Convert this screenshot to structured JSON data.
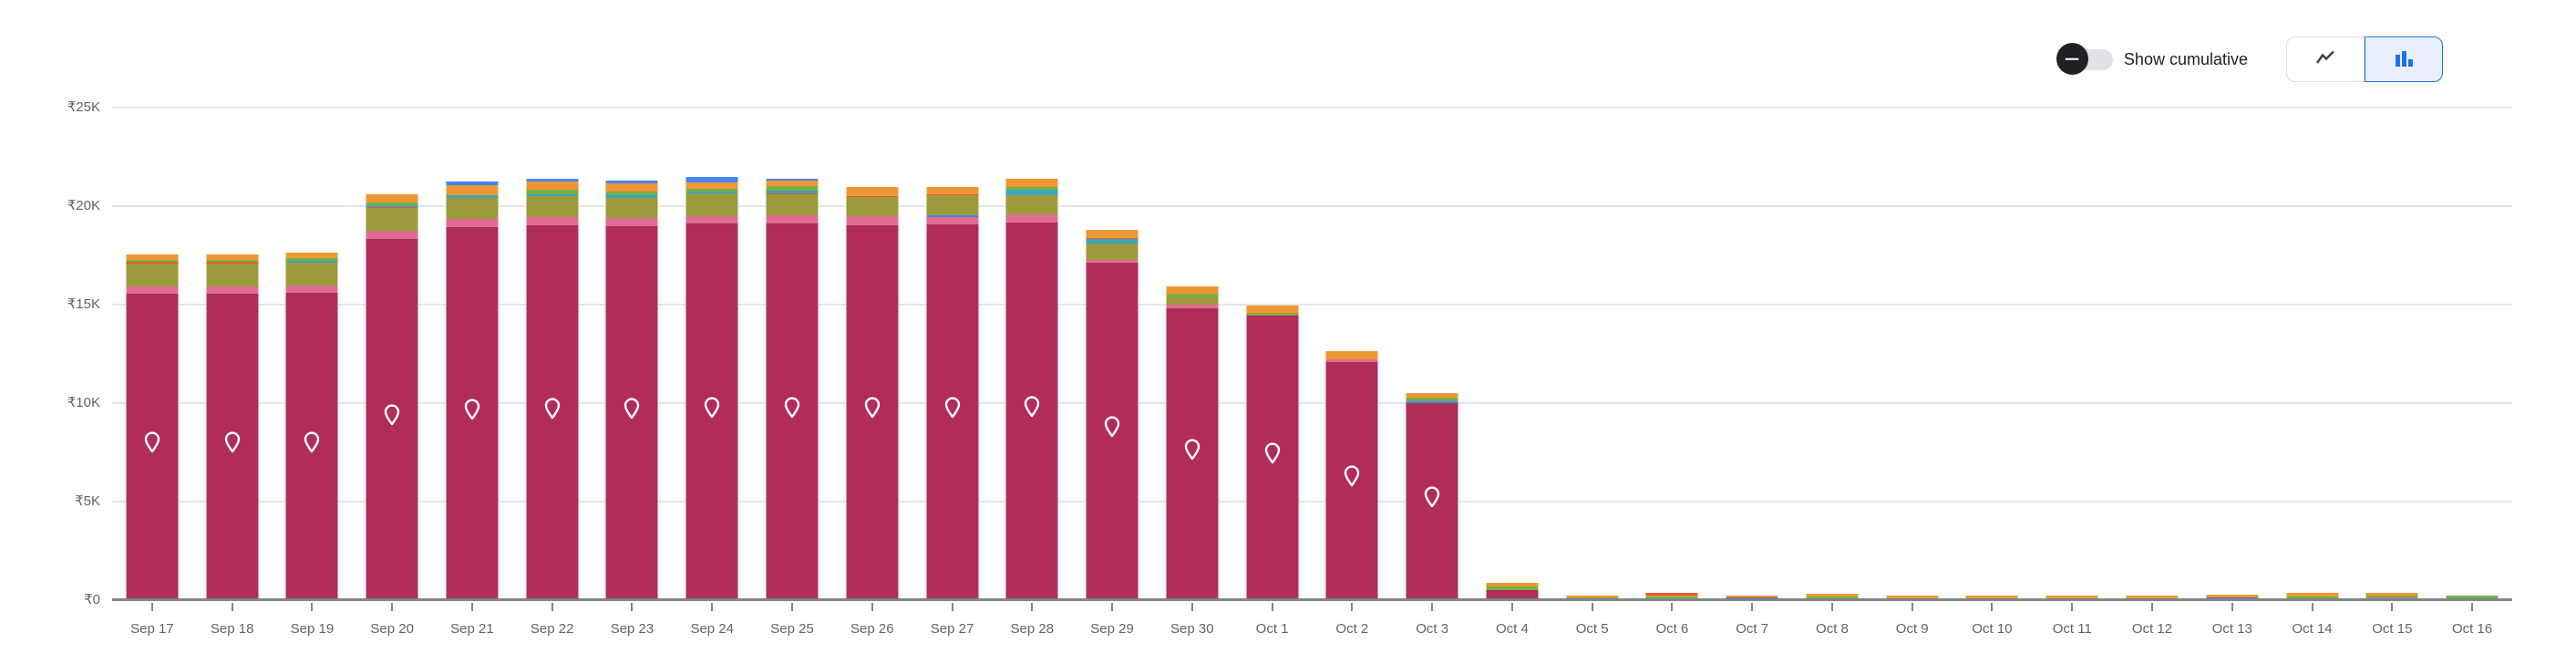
{
  "controls": {
    "toggle_label": "Show cumulative",
    "toggle_state": "off",
    "chart_type_buttons": [
      {
        "name": "line-chart",
        "selected": false
      },
      {
        "name": "bar-chart",
        "selected": true
      }
    ]
  },
  "colors": {
    "magenta": "#b02c59",
    "pink": "#e06c94",
    "olive": "#9d9a3b",
    "deep_orange": "#e2593a",
    "teal": "#3aa6b9",
    "green": "#76b043",
    "orange": "#ee9734",
    "blue": "#4285f4",
    "indigo": "#5b6abf",
    "accent_blue": "#1a73e8",
    "selected_button_bg": "#e8f0fe",
    "axis_label": "#5f6368",
    "gridline": "#e4e4e9",
    "baseline": "#7f868c"
  },
  "chart_data": {
    "type": "bar",
    "stacked": true,
    "currency": "₹",
    "y_ticks": [
      "₹25K",
      "₹20K",
      "₹15K",
      "₹10K",
      "₹5K",
      "₹0"
    ],
    "ylim": [
      0,
      25000
    ],
    "grid": true,
    "categories": [
      "Sep 17",
      "Sep 18",
      "Sep 19",
      "Sep 20",
      "Sep 21",
      "Sep 22",
      "Sep 23",
      "Sep 24",
      "Sep 25",
      "Sep 26",
      "Sep 27",
      "Sep 28",
      "Sep 29",
      "Sep 30",
      "Oct 1",
      "Oct 2",
      "Oct 3",
      "Oct 4",
      "Oct 5",
      "Oct 6",
      "Oct 7",
      "Oct 8",
      "Oct 9",
      "Oct 10",
      "Oct 11",
      "Oct 12",
      "Oct 13",
      "Oct 14",
      "Oct 15",
      "Oct 16"
    ],
    "bars": [
      {
        "date": "Sep 17",
        "pin": true,
        "segments": [
          [
            "magenta",
            15570
          ],
          [
            "pink",
            370
          ],
          [
            "olive",
            1130
          ],
          [
            "deep_orange",
            90
          ],
          [
            "green",
            90
          ],
          [
            "orange",
            290
          ]
        ]
      },
      {
        "date": "Sep 18",
        "pin": true,
        "segments": [
          [
            "magenta",
            15570
          ],
          [
            "pink",
            370
          ],
          [
            "olive",
            1130
          ],
          [
            "deep_orange",
            90
          ],
          [
            "green",
            90
          ],
          [
            "orange",
            290
          ]
        ]
      },
      {
        "date": "Sep 19",
        "pin": true,
        "segments": [
          [
            "magenta",
            15600
          ],
          [
            "pink",
            380
          ],
          [
            "olive",
            1130
          ],
          [
            "teal",
            100
          ],
          [
            "green",
            140
          ],
          [
            "orange",
            290
          ]
        ]
      },
      {
        "date": "Sep 20",
        "pin": true,
        "segments": [
          [
            "magenta",
            18350
          ],
          [
            "pink",
            410
          ],
          [
            "olive",
            1130
          ],
          [
            "deep_orange",
            70
          ],
          [
            "teal",
            110
          ],
          [
            "green",
            120
          ],
          [
            "orange",
            430
          ]
        ]
      },
      {
        "date": "Sep 21",
        "pin": true,
        "segments": [
          [
            "magenta",
            18930
          ],
          [
            "pink",
            420
          ],
          [
            "olive",
            1080
          ],
          [
            "teal",
            110
          ],
          [
            "orange",
            510
          ],
          [
            "blue",
            190
          ]
        ]
      },
      {
        "date": "Sep 22",
        "pin": true,
        "segments": [
          [
            "magenta",
            19010
          ],
          [
            "pink",
            420
          ],
          [
            "olive",
            1080
          ],
          [
            "teal",
            90
          ],
          [
            "green",
            230
          ],
          [
            "orange",
            420
          ],
          [
            "blue",
            150
          ]
        ]
      },
      {
        "date": "Sep 23",
        "pin": true,
        "segments": [
          [
            "magenta",
            18970
          ],
          [
            "pink",
            420
          ],
          [
            "olive",
            1050
          ],
          [
            "teal",
            100
          ],
          [
            "green",
            200
          ],
          [
            "orange",
            420
          ],
          [
            "blue",
            120
          ]
        ]
      },
      {
        "date": "Sep 24",
        "pin": true,
        "segments": [
          [
            "magenta",
            19120
          ],
          [
            "pink",
            380
          ],
          [
            "olive",
            1130
          ],
          [
            "teal",
            110
          ],
          [
            "green",
            120
          ],
          [
            "orange",
            340
          ],
          [
            "blue",
            280
          ]
        ]
      },
      {
        "date": "Sep 25",
        "pin": true,
        "segments": [
          [
            "magenta",
            19120
          ],
          [
            "pink",
            430
          ],
          [
            "olive",
            1050
          ],
          [
            "deep_orange",
            60
          ],
          [
            "teal",
            110
          ],
          [
            "green",
            230
          ],
          [
            "orange",
            280
          ],
          [
            "blue",
            120
          ]
        ]
      },
      {
        "date": "Sep 26",
        "pin": true,
        "segments": [
          [
            "magenta",
            19040
          ],
          [
            "pink",
            430
          ],
          [
            "olive",
            1000
          ],
          [
            "deep_orange",
            60
          ],
          [
            "orange",
            430
          ]
        ]
      },
      {
        "date": "Sep 27",
        "pin": true,
        "segments": [
          [
            "magenta",
            19080
          ],
          [
            "pink",
            360
          ],
          [
            "blue",
            110
          ],
          [
            "olive",
            1020
          ],
          [
            "deep_orange",
            50
          ],
          [
            "orange",
            370
          ]
        ]
      },
      {
        "date": "Sep 28",
        "pin": true,
        "segments": [
          [
            "magenta",
            19150
          ],
          [
            "pink",
            430
          ],
          [
            "olive",
            960
          ],
          [
            "teal",
            300
          ],
          [
            "green",
            140
          ],
          [
            "orange",
            420
          ]
        ]
      },
      {
        "date": "Sep 29",
        "pin": true,
        "segments": [
          [
            "magenta",
            17110
          ],
          [
            "pink",
            150
          ],
          [
            "olive",
            860
          ],
          [
            "teal",
            220
          ],
          [
            "deep_orange",
            60
          ],
          [
            "orange",
            420
          ]
        ]
      },
      {
        "date": "Sep 30",
        "pin": true,
        "segments": [
          [
            "magenta",
            14830
          ],
          [
            "pink",
            150
          ],
          [
            "olive",
            450
          ],
          [
            "green",
            110
          ],
          [
            "orange",
            390
          ]
        ]
      },
      {
        "date": "Oct 1",
        "pin": true,
        "segments": [
          [
            "magenta",
            14450
          ],
          [
            "olive",
            50
          ],
          [
            "green",
            100
          ],
          [
            "orange",
            370
          ]
        ]
      },
      {
        "date": "Oct 2",
        "pin": true,
        "segments": [
          [
            "magenta",
            12100
          ],
          [
            "pink",
            120
          ],
          [
            "orange",
            400
          ]
        ]
      },
      {
        "date": "Oct 3",
        "pin": true,
        "segments": [
          [
            "magenta",
            10000
          ],
          [
            "blue",
            110
          ],
          [
            "green",
            150
          ],
          [
            "orange",
            230
          ]
        ]
      },
      {
        "date": "Oct 4",
        "pin": false,
        "segments": [
          [
            "magenta",
            520
          ],
          [
            "green",
            160
          ],
          [
            "orange",
            190
          ]
        ]
      },
      {
        "date": "Oct 5",
        "pin": false,
        "segments": [
          [
            "magenta",
            60
          ],
          [
            "green",
            80
          ],
          [
            "orange",
            80
          ]
        ]
      },
      {
        "date": "Oct 6",
        "pin": false,
        "segments": [
          [
            "green",
            180
          ],
          [
            "orange",
            70
          ],
          [
            "deep_orange",
            120
          ]
        ]
      },
      {
        "date": "Oct 7",
        "pin": false,
        "segments": [
          [
            "indigo",
            120
          ],
          [
            "orange",
            100
          ]
        ]
      },
      {
        "date": "Oct 8",
        "pin": false,
        "segments": [
          [
            "indigo",
            100
          ],
          [
            "green",
            90
          ],
          [
            "orange",
            120
          ]
        ]
      },
      {
        "date": "Oct 9",
        "pin": false,
        "segments": [
          [
            "green",
            100
          ],
          [
            "orange",
            120
          ]
        ]
      },
      {
        "date": "Oct 10",
        "pin": false,
        "segments": [
          [
            "green",
            100
          ],
          [
            "orange",
            150
          ]
        ]
      },
      {
        "date": "Oct 11",
        "pin": false,
        "segments": [
          [
            "orange",
            220
          ]
        ]
      },
      {
        "date": "Oct 12",
        "pin": false,
        "segments": [
          [
            "orange",
            220
          ]
        ]
      },
      {
        "date": "Oct 13",
        "pin": false,
        "segments": [
          [
            "indigo",
            120
          ],
          [
            "orange",
            170
          ]
        ]
      },
      {
        "date": "Oct 14",
        "pin": false,
        "segments": [
          [
            "indigo",
            100
          ],
          [
            "green",
            100
          ],
          [
            "orange",
            170
          ]
        ]
      },
      {
        "date": "Oct 15",
        "pin": false,
        "segments": [
          [
            "pink",
            120
          ],
          [
            "green",
            120
          ],
          [
            "orange",
            130
          ]
        ]
      },
      {
        "date": "Oct 16",
        "pin": false,
        "segments": [
          [
            "green",
            220
          ]
        ]
      }
    ]
  }
}
